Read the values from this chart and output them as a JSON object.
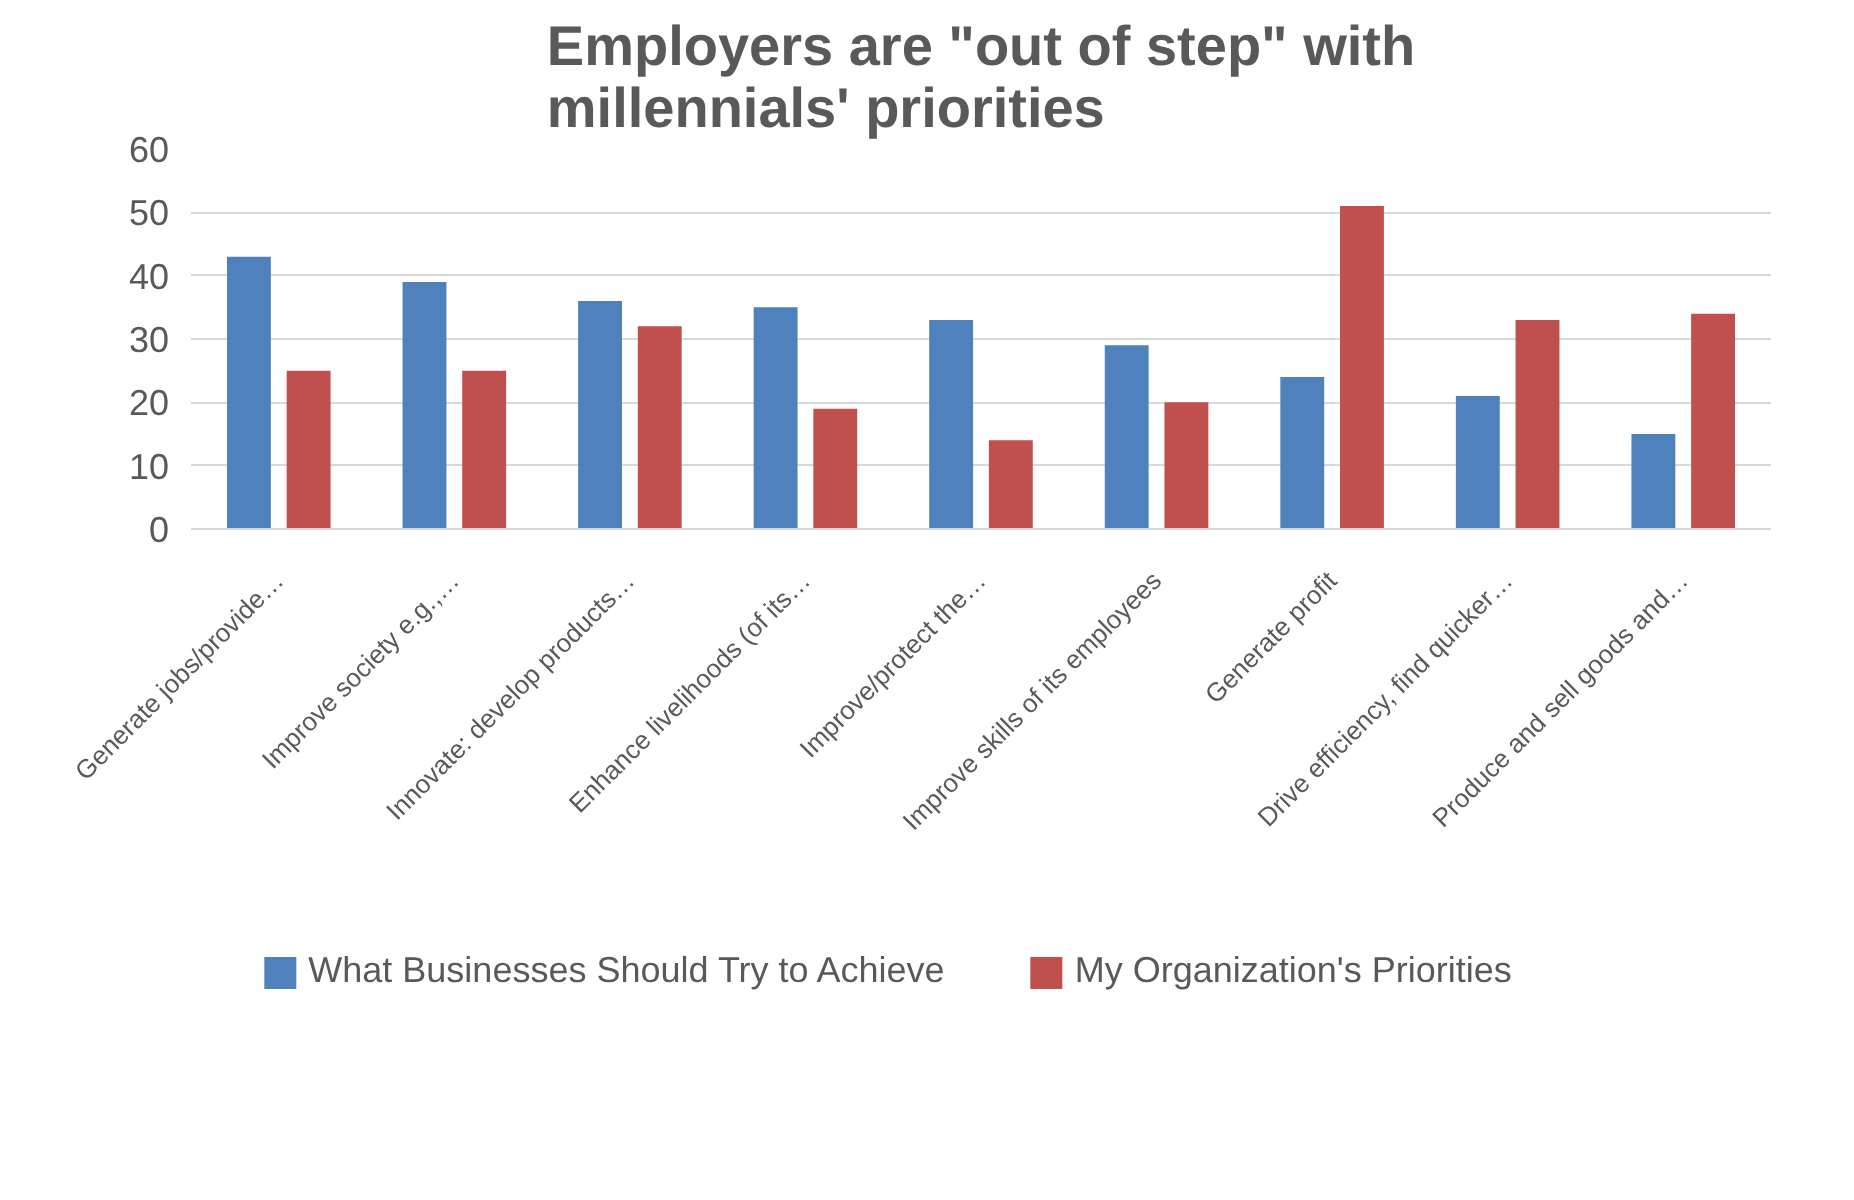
{
  "chart_data": {
    "type": "bar",
    "title": "Employers are \"out of step\" with millennials' priorities",
    "categories": [
      "Generate jobs/provide…",
      "Improve society e.g.,…",
      "Innovate: develop products…",
      "Enhance livelihoods (of its…",
      "Improve/protect the…",
      "Improve skills of its employees",
      "Generate profit",
      "Drive efficiency, find quicker…",
      "Produce and sell goods and…"
    ],
    "series": [
      {
        "name": "What Businesses Should Try to Achieve",
        "color": "#4f81bd",
        "values": [
          43,
          39,
          36,
          35,
          33,
          29,
          24,
          21,
          15
        ]
      },
      {
        "name": "My Organization's Priorities",
        "color": "#c0504d",
        "values": [
          25,
          25,
          32,
          19,
          14,
          20,
          51,
          33,
          34
        ]
      }
    ],
    "ylim": [
      0,
      60
    ],
    "yticks": [
      0,
      10,
      20,
      30,
      40,
      50,
      60
    ],
    "grid": "y",
    "legend": "bottom"
  }
}
